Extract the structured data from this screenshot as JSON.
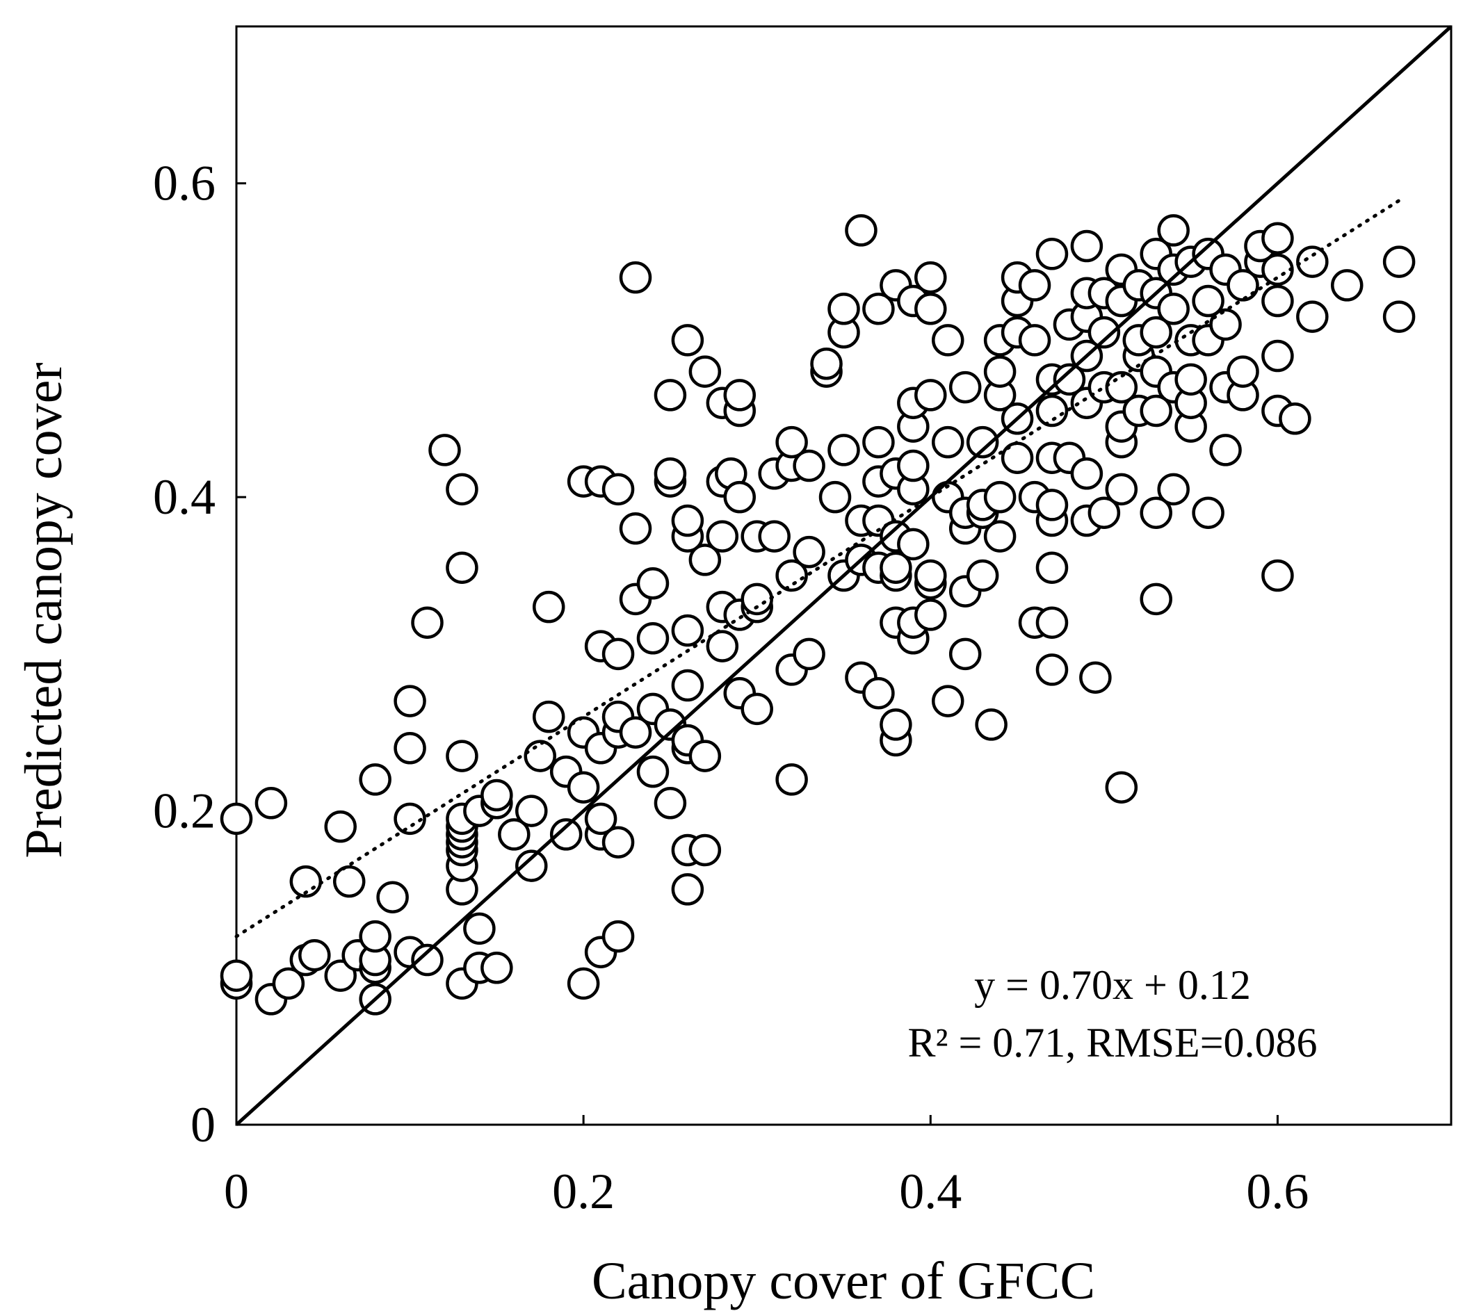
{
  "chart_data": {
    "type": "scatter",
    "title": "",
    "xlabel": "Canopy cover of GFCC",
    "ylabel": "Predicted canopy cover",
    "xlim": [
      0,
      0.7
    ],
    "ylim": [
      0,
      0.7
    ],
    "x_ticks": [
      0,
      0.2,
      0.4,
      0.6
    ],
    "y_ticks": [
      0,
      0.2,
      0.4,
      0.6
    ],
    "x_tick_labels": [
      "0",
      "0.2",
      "0.4",
      "0.6"
    ],
    "y_tick_labels": [
      "0",
      "0.2",
      "0.4",
      "0.6"
    ],
    "grid": false,
    "legend": "none",
    "marker": "open-circle",
    "reference_line": {
      "style": "solid",
      "slope": 1,
      "intercept": 0
    },
    "fit_line": {
      "style": "dotted",
      "slope": 0.7,
      "intercept": 0.12,
      "x_range": [
        0,
        0.67
      ]
    },
    "annotations": [
      "y = 0.70x + 0.12",
      "R² = 0.71, RMSE=0.086"
    ],
    "series": [
      {
        "x": [
          0,
          0,
          0,
          0.02,
          0.02,
          0.03,
          0.04,
          0.04,
          0.045,
          0.06,
          0.06,
          0.065,
          0.07,
          0.08,
          0.08,
          0.08,
          0.08,
          0.08,
          0.09,
          0.1,
          0.1,
          0.1,
          0.1,
          0.11,
          0.11,
          0.12,
          0.13,
          0.13,
          0.13,
          0.13,
          0.13,
          0.13,
          0.13,
          0.13,
          0.13,
          0.13,
          0.13,
          0.14,
          0.14,
          0.14,
          0.15,
          0.15,
          0.15,
          0.16,
          0.17,
          0.17,
          0.175,
          0.18,
          0.18,
          0.19,
          0.19,
          0.2,
          0.2,
          0.2,
          0.2,
          0.21,
          0.21,
          0.21,
          0.21,
          0.21,
          0.21,
          0.22,
          0.22,
          0.22,
          0.22,
          0.22,
          0.22,
          0.23,
          0.23,
          0.23,
          0.23,
          0.24,
          0.24,
          0.24,
          0.24,
          0.25,
          0.25,
          0.25,
          0.25,
          0.25,
          0.26,
          0.26,
          0.26,
          0.26,
          0.26,
          0.26,
          0.26,
          0.26,
          0.26,
          0.27,
          0.27,
          0.27,
          0.27,
          0.28,
          0.28,
          0.28,
          0.28,
          0.28,
          0.285,
          0.29,
          0.29,
          0.29,
          0.29,
          0.29,
          0.3,
          0.3,
          0.3,
          0.3,
          0.31,
          0.31,
          0.32,
          0.32,
          0.32,
          0.32,
          0.32,
          0.33,
          0.33,
          0.33,
          0.34,
          0.34,
          0.345,
          0.35,
          0.35,
          0.35,
          0.35,
          0.36,
          0.36,
          0.36,
          0.36,
          0.37,
          0.37,
          0.37,
          0.37,
          0.37,
          0.37,
          0.38,
          0.38,
          0.38,
          0.38,
          0.38,
          0.38,
          0.38,
          0.38,
          0.39,
          0.39,
          0.39,
          0.39,
          0.39,
          0.39,
          0.39,
          0.39,
          0.4,
          0.4,
          0.4,
          0.4,
          0.4,
          0.4,
          0.41,
          0.41,
          0.41,
          0.41,
          0.42,
          0.42,
          0.42,
          0.42,
          0.42,
          0.43,
          0.43,
          0.43,
          0.43,
          0.435,
          0.44,
          0.44,
          0.44,
          0.44,
          0.44,
          0.45,
          0.45,
          0.45,
          0.45,
          0.45,
          0.46,
          0.46,
          0.46,
          0.46,
          0.47,
          0.47,
          0.47,
          0.47,
          0.47,
          0.47,
          0.47,
          0.47,
          0.47,
          0.48,
          0.48,
          0.48,
          0.49,
          0.49,
          0.49,
          0.49,
          0.49,
          0.49,
          0.49,
          0.495,
          0.5,
          0.5,
          0.5,
          0.5,
          0.51,
          0.51,
          0.51,
          0.51,
          0.51,
          0.51,
          0.51,
          0.52,
          0.52,
          0.52,
          0.52,
          0.53,
          0.53,
          0.53,
          0.53,
          0.53,
          0.53,
          0.53,
          0.54,
          0.54,
          0.54,
          0.54,
          0.54,
          0.55,
          0.55,
          0.55,
          0.55,
          0.55,
          0.56,
          0.56,
          0.56,
          0.56,
          0.57,
          0.57,
          0.57,
          0.57,
          0.58,
          0.58,
          0.58,
          0.59,
          0.59,
          0.6,
          0.6,
          0.6,
          0.6,
          0.6,
          0.6,
          0.61,
          0.62,
          0.62,
          0.64,
          0.67,
          0.67
        ],
        "y": [
          0.09,
          0.095,
          0.195,
          0.08,
          0.205,
          0.09,
          0.105,
          0.155,
          0.108,
          0.095,
          0.19,
          0.155,
          0.108,
          0.08,
          0.1,
          0.105,
          0.12,
          0.22,
          0.145,
          0.11,
          0.195,
          0.24,
          0.27,
          0.105,
          0.32,
          0.43,
          0.09,
          0.15,
          0.165,
          0.175,
          0.18,
          0.185,
          0.19,
          0.195,
          0.235,
          0.355,
          0.405,
          0.1,
          0.125,
          0.2,
          0.1,
          0.205,
          0.21,
          0.185,
          0.165,
          0.2,
          0.235,
          0.33,
          0.26,
          0.185,
          0.225,
          0.09,
          0.215,
          0.25,
          0.41,
          0.11,
          0.185,
          0.195,
          0.24,
          0.305,
          0.41,
          0.12,
          0.18,
          0.25,
          0.26,
          0.3,
          0.405,
          0.25,
          0.335,
          0.38,
          0.54,
          0.225,
          0.265,
          0.31,
          0.345,
          0.205,
          0.255,
          0.41,
          0.415,
          0.465,
          0.15,
          0.175,
          0.24,
          0.245,
          0.28,
          0.315,
          0.375,
          0.385,
          0.5,
          0.175,
          0.235,
          0.36,
          0.48,
          0.305,
          0.33,
          0.375,
          0.41,
          0.46,
          0.415,
          0.275,
          0.325,
          0.4,
          0.455,
          0.465,
          0.265,
          0.33,
          0.335,
          0.375,
          0.375,
          0.415,
          0.22,
          0.29,
          0.35,
          0.42,
          0.435,
          0.3,
          0.365,
          0.42,
          0.48,
          0.485,
          0.4,
          0.35,
          0.43,
          0.505,
          0.52,
          0.285,
          0.36,
          0.385,
          0.57,
          0.275,
          0.355,
          0.385,
          0.41,
          0.435,
          0.52,
          0.245,
          0.255,
          0.32,
          0.35,
          0.355,
          0.375,
          0.415,
          0.535,
          0.31,
          0.32,
          0.37,
          0.405,
          0.42,
          0.445,
          0.46,
          0.525,
          0.325,
          0.345,
          0.35,
          0.465,
          0.52,
          0.54,
          0.27,
          0.4,
          0.435,
          0.5,
          0.3,
          0.34,
          0.38,
          0.39,
          0.47,
          0.35,
          0.39,
          0.395,
          0.435,
          0.255,
          0.375,
          0.4,
          0.465,
          0.48,
          0.5,
          0.425,
          0.45,
          0.505,
          0.525,
          0.54,
          0.32,
          0.4,
          0.5,
          0.535,
          0.29,
          0.32,
          0.355,
          0.385,
          0.395,
          0.425,
          0.455,
          0.475,
          0.555,
          0.425,
          0.475,
          0.51,
          0.385,
          0.415,
          0.46,
          0.49,
          0.515,
          0.53,
          0.56,
          0.285,
          0.39,
          0.47,
          0.505,
          0.53,
          0.215,
          0.405,
          0.435,
          0.445,
          0.47,
          0.525,
          0.545,
          0.455,
          0.49,
          0.5,
          0.535,
          0.335,
          0.39,
          0.455,
          0.48,
          0.505,
          0.53,
          0.555,
          0.405,
          0.47,
          0.52,
          0.545,
          0.57,
          0.445,
          0.46,
          0.475,
          0.5,
          0.55,
          0.39,
          0.5,
          0.525,
          0.555,
          0.43,
          0.47,
          0.51,
          0.545,
          0.465,
          0.48,
          0.535,
          0.55,
          0.56,
          0.35,
          0.455,
          0.49,
          0.525,
          0.545,
          0.565,
          0.45,
          0.515,
          0.55,
          0.535,
          0.515,
          0.55
        ]
      }
    ]
  }
}
